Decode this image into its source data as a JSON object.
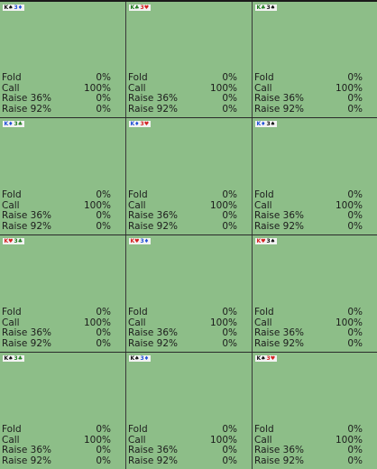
{
  "colors": {
    "cell_bg": "#8dbe88",
    "grid_line": "#3a3a3a",
    "spade": "#111111",
    "club": "#1b7a1b",
    "diamond": "#1f4fd6",
    "heart": "#d41f1f"
  },
  "actions": [
    "Fold",
    "Call",
    "Raise 36%",
    "Raise 92%"
  ],
  "cells": [
    {
      "hand": [
        {
          "r": "K",
          "s": "♠",
          "suit": "spade"
        },
        {
          "r": "3",
          "s": "♦",
          "suit": "diamond"
        }
      ],
      "values": [
        "0%",
        "100%",
        "0%",
        "0%"
      ]
    },
    {
      "hand": [
        {
          "r": "K",
          "s": "♣",
          "suit": "club"
        },
        {
          "r": "3",
          "s": "♥",
          "suit": "heart"
        }
      ],
      "values": [
        "0%",
        "100%",
        "0%",
        "0%"
      ]
    },
    {
      "hand": [
        {
          "r": "K",
          "s": "♣",
          "suit": "club"
        },
        {
          "r": "3",
          "s": "♠",
          "suit": "spade"
        }
      ],
      "values": [
        "0%",
        "100%",
        "0%",
        "0%"
      ]
    },
    {
      "hand": [
        {
          "r": "K",
          "s": "♦",
          "suit": "diamond"
        },
        {
          "r": "3",
          "s": "♣",
          "suit": "club"
        }
      ],
      "values": [
        "0%",
        "100%",
        "0%",
        "0%"
      ]
    },
    {
      "hand": [
        {
          "r": "K",
          "s": "♦",
          "suit": "diamond"
        },
        {
          "r": "3",
          "s": "♥",
          "suit": "heart"
        }
      ],
      "values": [
        "0%",
        "100%",
        "0%",
        "0%"
      ]
    },
    {
      "hand": [
        {
          "r": "K",
          "s": "♦",
          "suit": "diamond"
        },
        {
          "r": "3",
          "s": "♠",
          "suit": "spade"
        }
      ],
      "values": [
        "0%",
        "100%",
        "0%",
        "0%"
      ]
    },
    {
      "hand": [
        {
          "r": "K",
          "s": "♥",
          "suit": "heart"
        },
        {
          "r": "3",
          "s": "♣",
          "suit": "club"
        }
      ],
      "values": [
        "0%",
        "100%",
        "0%",
        "0%"
      ]
    },
    {
      "hand": [
        {
          "r": "K",
          "s": "♥",
          "suit": "heart"
        },
        {
          "r": "3",
          "s": "♦",
          "suit": "diamond"
        }
      ],
      "values": [
        "0%",
        "100%",
        "0%",
        "0%"
      ]
    },
    {
      "hand": [
        {
          "r": "K",
          "s": "♥",
          "suit": "heart"
        },
        {
          "r": "3",
          "s": "♠",
          "suit": "spade"
        }
      ],
      "values": [
        "0%",
        "100%",
        "0%",
        "0%"
      ]
    },
    {
      "hand": [
        {
          "r": "K",
          "s": "♠",
          "suit": "spade"
        },
        {
          "r": "3",
          "s": "♣",
          "suit": "club"
        }
      ],
      "values": [
        "0%",
        "100%",
        "0%",
        "0%"
      ]
    },
    {
      "hand": [
        {
          "r": "K",
          "s": "♠",
          "suit": "spade"
        },
        {
          "r": "3",
          "s": "♦",
          "suit": "diamond"
        }
      ],
      "values": [
        "0%",
        "100%",
        "0%",
        "0%"
      ]
    },
    {
      "hand": [
        {
          "r": "K",
          "s": "♠",
          "suit": "spade"
        },
        {
          "r": "3",
          "s": "♥",
          "suit": "heart"
        }
      ],
      "values": [
        "0%",
        "100%",
        "0%",
        "0%"
      ]
    }
  ]
}
